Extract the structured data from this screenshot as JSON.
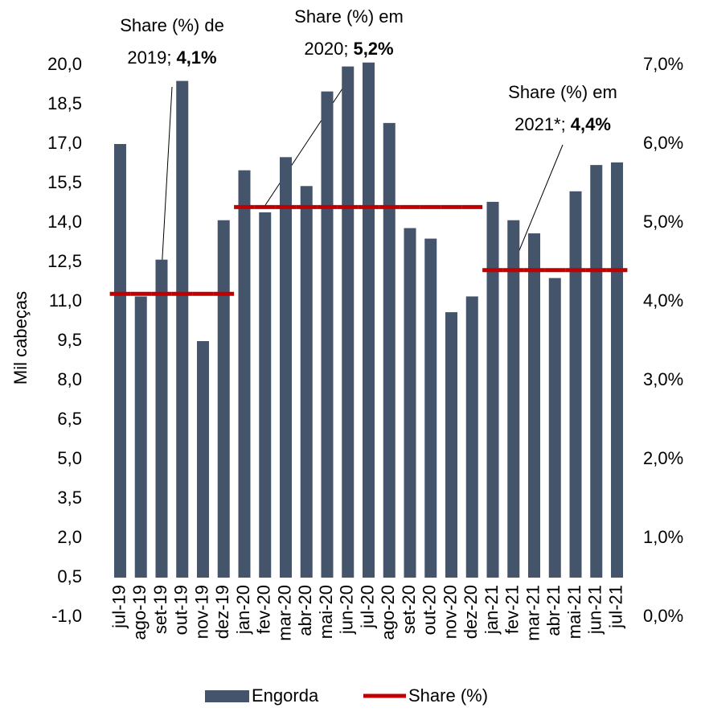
{
  "chart_data": {
    "type": "bar",
    "y_axis_label": "Mil cabeças",
    "categories": [
      "jul-19",
      "ago-19",
      "set-19",
      "out-19",
      "nov-19",
      "dez-19",
      "jan-20",
      "fev-20",
      "mar-20",
      "abr-20",
      "mai-20",
      "jun-20",
      "jul-20",
      "ago-20",
      "set-20",
      "out-20",
      "nov-20",
      "dez-20",
      "jan-21",
      "fev-21",
      "mar-21",
      "abr-21",
      "mai-21",
      "jun-21",
      "jul-21"
    ],
    "series": [
      {
        "name": "Engorda",
        "color": "#44546a",
        "values": [
          17.0,
          11.2,
          12.6,
          19.4,
          9.5,
          14.1,
          16.0,
          14.4,
          16.5,
          15.4,
          19.0,
          19.95,
          20.1,
          17.8,
          13.8,
          13.4,
          10.6,
          11.2,
          14.8,
          14.1,
          13.6,
          11.9,
          15.2,
          16.2,
          16.3
        ]
      },
      {
        "name": "Share (%)",
        "color": "#c00000",
        "type": "line",
        "axis": "y2",
        "values": [
          4.1,
          4.1,
          4.1,
          4.1,
          4.1,
          4.1,
          5.2,
          5.2,
          5.2,
          5.2,
          5.2,
          5.2,
          5.2,
          5.2,
          5.2,
          5.2,
          5.2,
          5.2,
          4.4,
          4.4,
          4.4,
          4.4,
          4.4,
          4.4,
          4.4
        ]
      }
    ],
    "ylim": [
      -1.0,
      20.0
    ],
    "yticks": [
      {
        "value": -1.0,
        "label": "-1,0"
      },
      {
        "value": 0.5,
        "label": "0,5"
      },
      {
        "value": 2.0,
        "label": "2,0"
      },
      {
        "value": 3.5,
        "label": "3,5"
      },
      {
        "value": 5.0,
        "label": "5,0"
      },
      {
        "value": 6.5,
        "label": "6,5"
      },
      {
        "value": 8.0,
        "label": "8,0"
      },
      {
        "value": 9.5,
        "label": "9,5"
      },
      {
        "value": 11.0,
        "label": "11,0"
      },
      {
        "value": 12.5,
        "label": "12,5"
      },
      {
        "value": 14.0,
        "label": "14,0"
      },
      {
        "value": 15.5,
        "label": "15,5"
      },
      {
        "value": 17.0,
        "label": "17,0"
      },
      {
        "value": 18.5,
        "label": "18,5"
      },
      {
        "value": 20.0,
        "label": "20,0"
      }
    ],
    "y2lim": [
      0,
      7
    ],
    "y2ticks": [
      {
        "value": 0,
        "label": "0,0%"
      },
      {
        "value": 1,
        "label": "1,0%"
      },
      {
        "value": 2,
        "label": "2,0%"
      },
      {
        "value": 3,
        "label": "3,0%"
      },
      {
        "value": 4,
        "label": "4,0%"
      },
      {
        "value": 5,
        "label": "5,0%"
      },
      {
        "value": 6,
        "label": "6,0%"
      },
      {
        "value": 7,
        "label": "7,0%"
      }
    ],
    "annotations": [
      {
        "lines": [
          "Share (%) de",
          "2019;"
        ],
        "emphasis": "4,1%"
      },
      {
        "lines": [
          "Share (%) em",
          "2020;"
        ],
        "emphasis": "5,2%"
      },
      {
        "lines": [
          "Share (%) em",
          "2021*;"
        ],
        "emphasis": "4,4%"
      }
    ]
  }
}
